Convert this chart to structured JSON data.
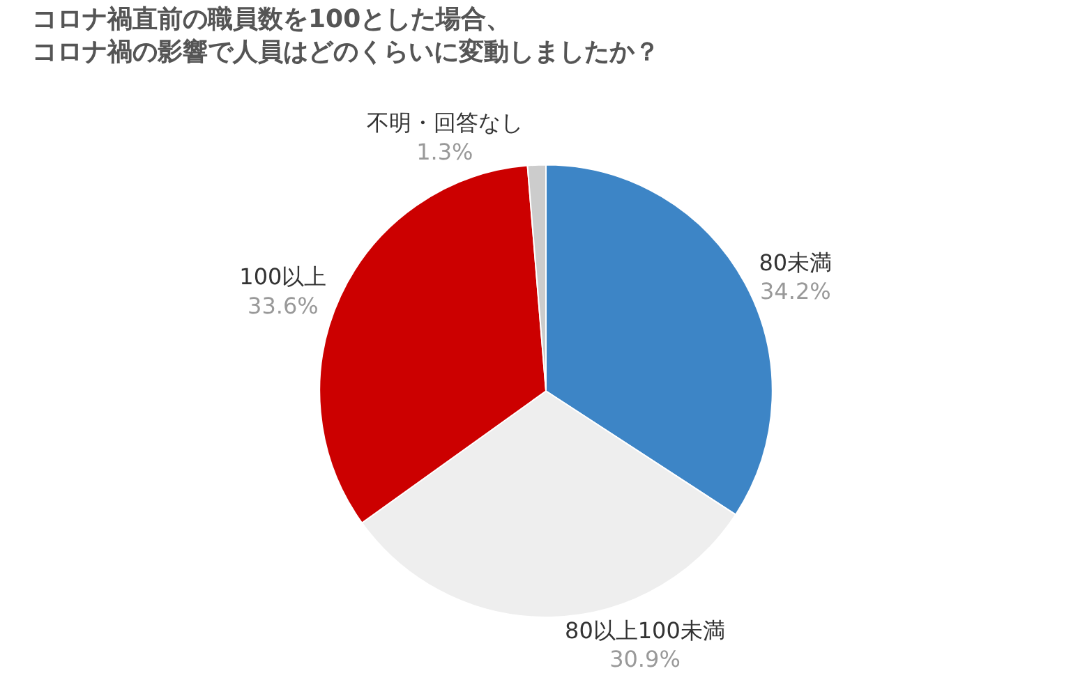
{
  "chart_data": {
    "type": "pie",
    "title": "コロナ禍直前の職員数を100とした場合、コロナ禍の影響で人員はどのくらいに変動しましたか？",
    "categories": [
      "80未満",
      "80以上100未満",
      "100以上",
      "不明・回答なし"
    ],
    "values": [
      34.2,
      30.9,
      33.6,
      1.3
    ],
    "value_labels": [
      "34.2%",
      "30.9%",
      "33.6%",
      "1.3%"
    ],
    "colors": [
      "#3d85c6",
      "#eeeeee",
      "#cc0000",
      "#cccccc"
    ],
    "legend": false
  }
}
